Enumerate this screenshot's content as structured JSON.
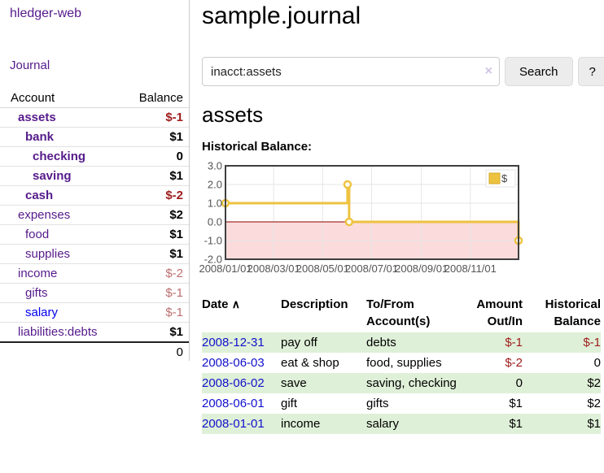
{
  "brand": {
    "label": "hledger-web"
  },
  "nav": {
    "journal": "Journal"
  },
  "sidebar": {
    "header": {
      "account": "Account",
      "balance": "Balance"
    },
    "accounts": [
      {
        "name": "assets",
        "balance": "$-1",
        "level": 1,
        "bold": true,
        "neg": "dark"
      },
      {
        "name": "bank",
        "balance": "$1",
        "level": 2,
        "bold": true,
        "neg": null
      },
      {
        "name": "checking",
        "balance": "0",
        "level": 3,
        "bold": true,
        "neg": null
      },
      {
        "name": "saving",
        "balance": "$1",
        "level": 3,
        "bold": true,
        "neg": null
      },
      {
        "name": "cash",
        "balance": "$-2",
        "level": 2,
        "bold": true,
        "neg": "dark"
      },
      {
        "name": "expenses",
        "balance": "$2",
        "level": 1,
        "bold": false,
        "neg": null
      },
      {
        "name": "food",
        "balance": "$1",
        "level": 2,
        "bold": false,
        "neg": null
      },
      {
        "name": "supplies",
        "balance": "$1",
        "level": 2,
        "bold": false,
        "neg": null
      },
      {
        "name": "income",
        "balance": "$-2",
        "level": 1,
        "bold": false,
        "neg": "light"
      },
      {
        "name": "gifts",
        "balance": "$-1",
        "level": 2,
        "bold": false,
        "neg": "light"
      },
      {
        "name": "salary",
        "balance": "$-1",
        "level": 2,
        "bold": false,
        "neg": "light",
        "blue": true
      },
      {
        "name": "liabilities:debts",
        "balance": "$1",
        "level": 1,
        "bold": false,
        "neg": null
      }
    ],
    "total": "0"
  },
  "main": {
    "title": "sample.journal",
    "search": {
      "value": "inacct:assets",
      "clear_icon": "×",
      "search_button": "Search",
      "help_button": "?"
    },
    "account_title": "assets",
    "chart_label": "Historical Balance:"
  },
  "chart_data": {
    "type": "line",
    "title": "Historical Balance",
    "step": true,
    "series": [
      {
        "name": "$",
        "color": "#edc240",
        "points": [
          {
            "date": "2008-01-01",
            "day": 0,
            "value": 1
          },
          {
            "date": "2008-06-01",
            "day": 152,
            "value": 2
          },
          {
            "date": "2008-06-03",
            "day": 154,
            "value": 0
          },
          {
            "date": "2008-12-31",
            "day": 365,
            "value": -1
          }
        ]
      }
    ],
    "x_ticks": [
      {
        "label": "2008/01/01",
        "day": 0
      },
      {
        "label": "2008/03/01",
        "day": 60
      },
      {
        "label": "2008/05/01",
        "day": 121
      },
      {
        "label": "2008/07/01",
        "day": 182
      },
      {
        "label": "2008/09/01",
        "day": 244
      },
      {
        "label": "2008/11/01",
        "day": 305
      }
    ],
    "y_ticks": [
      {
        "label": "3.0",
        "value": 3
      },
      {
        "label": "2.0",
        "value": 2
      },
      {
        "label": "1.0",
        "value": 1
      },
      {
        "label": "0.0",
        "value": 0
      },
      {
        "label": "-1.0",
        "value": -1
      },
      {
        "label": "-2.0",
        "value": -2
      }
    ],
    "ylim": [
      -2,
      3
    ],
    "xlim_days": [
      0,
      365
    ],
    "legend": {
      "label": "$",
      "position": "top-right"
    },
    "grid": true,
    "negative_region": true,
    "colors": {
      "series": "#edc240",
      "negative_fill": "#fbdbdb",
      "zero_line": "#8b0000",
      "grid": "#e6e6e6",
      "border": "#3f3f3f",
      "tick_text": "#545454"
    }
  },
  "register": {
    "columns": {
      "date": "Date",
      "sort_indicator": "∧",
      "description": "Description",
      "accounts_line1": "To/From",
      "accounts_line2": "Account(s)",
      "amount_line1": "Amount",
      "amount_line2": "Out/In",
      "balance_line1": "Historical",
      "balance_line2": "Balance"
    },
    "rows": [
      {
        "date": "2008-12-31",
        "description": "pay off",
        "accounts": "debts",
        "amount": "$-1",
        "balance": "$-1"
      },
      {
        "date": "2008-06-03",
        "description": "eat & shop",
        "accounts": "food, supplies",
        "amount": "$-2",
        "balance": "0"
      },
      {
        "date": "2008-06-02",
        "description": "save",
        "accounts": "saving, checking",
        "amount": "0",
        "balance": "$2"
      },
      {
        "date": "2008-06-01",
        "description": "gift",
        "accounts": "gifts",
        "amount": "$1",
        "balance": "$2"
      },
      {
        "date": "2008-01-01",
        "description": "income",
        "accounts": "salary",
        "amount": "$1",
        "balance": "$1"
      }
    ]
  }
}
